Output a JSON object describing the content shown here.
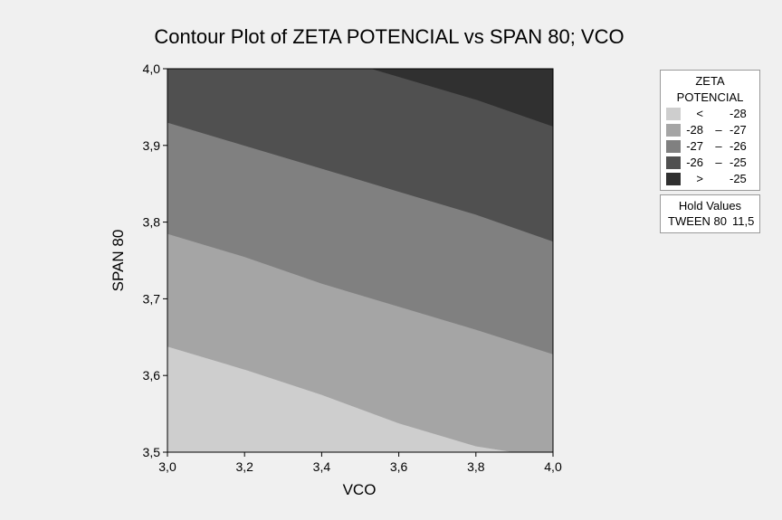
{
  "chart_data": {
    "type": "contour",
    "title": "Contour Plot of ZETA POTENCIAL vs SPAN 80; VCO",
    "xlabel": "VCO",
    "ylabel": "SPAN 80",
    "xlim": [
      3.0,
      4.0
    ],
    "ylim": [
      3.5,
      4.0
    ],
    "xticks": [
      "3,0",
      "3,2",
      "3,4",
      "3,6",
      "3,8",
      "4,0"
    ],
    "yticks": [
      "3,5",
      "3,6",
      "3,7",
      "3,8",
      "3,9",
      "4,0"
    ],
    "contour_levels": [
      -28,
      -27,
      -26,
      -25
    ],
    "contour_lines": [
      {
        "level": -28,
        "points": [
          [
            3.0,
            3.638
          ],
          [
            3.2,
            3.608
          ],
          [
            3.4,
            3.575
          ],
          [
            3.6,
            3.538
          ],
          [
            3.8,
            3.508
          ],
          [
            3.9,
            3.5
          ]
        ]
      },
      {
        "level": -27,
        "points": [
          [
            3.0,
            3.785
          ],
          [
            3.2,
            3.755
          ],
          [
            3.4,
            3.72
          ],
          [
            3.6,
            3.69
          ],
          [
            3.8,
            3.66
          ],
          [
            4.0,
            3.628
          ]
        ]
      },
      {
        "level": -26,
        "points": [
          [
            3.0,
            3.93
          ],
          [
            3.2,
            3.9
          ],
          [
            3.4,
            3.87
          ],
          [
            3.6,
            3.84
          ],
          [
            3.8,
            3.81
          ],
          [
            4.0,
            3.775
          ]
        ]
      },
      {
        "level": -25,
        "points": [
          [
            3.53,
            4.0
          ],
          [
            3.8,
            3.96
          ],
          [
            4.0,
            3.925
          ]
        ]
      }
    ],
    "legend": {
      "title_lines": [
        "ZETA",
        "POTENCIAL"
      ],
      "placement": "right",
      "entries": [
        {
          "lo": "<",
          "dash": "",
          "hi": "-28",
          "color": "#cecece"
        },
        {
          "lo": "-28",
          "dash": "–",
          "hi": "-27",
          "color": "#a5a5a5"
        },
        {
          "lo": "-27",
          "dash": "–",
          "hi": "-26",
          "color": "#808080"
        },
        {
          "lo": "-26",
          "dash": "–",
          "hi": "-25",
          "color": "#505050"
        },
        {
          "lo": ">",
          "dash": "",
          "hi": "-25",
          "color": "#303030"
        }
      ]
    },
    "hold_values": {
      "title": "Hold Values",
      "items": [
        {
          "name": "TWEEN 80",
          "value": "11,5"
        }
      ]
    },
    "grid": false
  }
}
